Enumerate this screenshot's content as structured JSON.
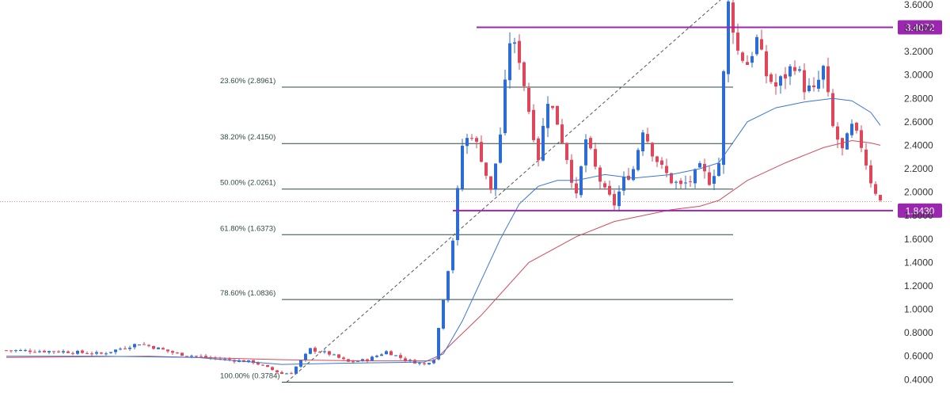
{
  "chart_data": {
    "type": "candlestick",
    "ylim": [
      0.26,
      3.64
    ],
    "x_count": 185,
    "y_ticks": [
      0.4,
      0.6,
      0.8,
      1.0,
      1.2,
      1.4,
      1.6,
      1.8,
      2.0,
      2.2,
      2.4,
      2.6,
      2.8,
      3.0,
      3.2,
      3.4,
      3.6
    ],
    "y_tick_labels": [
      "0.4000",
      "0.6000",
      "0.8000",
      "1.0000",
      "1.2000",
      "1.4000",
      "1.6000",
      "1.8000",
      "2.0000",
      "2.2000",
      "2.4000",
      "2.6000",
      "2.8000",
      "3.0000",
      "3.2000",
      "3.4000",
      "3.6000"
    ],
    "current_price": 1.92,
    "fib_levels": [
      {
        "label": "23.60% (2.8961)",
        "value": 2.8961
      },
      {
        "label": "38.20% (2.4150)",
        "value": 2.415
      },
      {
        "label": "50.00% (2.0261)",
        "value": 2.0261
      },
      {
        "label": "61.80% (1.6373)",
        "value": 1.6373
      },
      {
        "label": "78.60% (1.0836)",
        "value": 1.0836
      },
      {
        "label": "100.00% (0.3784)",
        "value": 0.3784
      }
    ],
    "fib_x_range": [
      58,
      153
    ],
    "trend_line": {
      "x": [
        59,
        152
      ],
      "y": [
        0.3784,
        3.7
      ]
    },
    "horizontal_lines": [
      {
        "value": 3.4072,
        "label": "3.4072",
        "x_start": 99
      },
      {
        "value": 1.843,
        "label": "1.8430",
        "x_start": 94
      }
    ],
    "anchors": [
      [
        0,
        0.65
      ],
      [
        12,
        0.64
      ],
      [
        20,
        0.62
      ],
      [
        28,
        0.71
      ],
      [
        36,
        0.62
      ],
      [
        44,
        0.58
      ],
      [
        52,
        0.55
      ],
      [
        58,
        0.45
      ],
      [
        60,
        0.46
      ],
      [
        64,
        0.66
      ],
      [
        68,
        0.62
      ],
      [
        72,
        0.55
      ],
      [
        76,
        0.57
      ],
      [
        80,
        0.64
      ],
      [
        84,
        0.57
      ],
      [
        88,
        0.53
      ],
      [
        90,
        0.58
      ],
      [
        92,
        1.1
      ],
      [
        94,
        1.6
      ],
      [
        96,
        2.4
      ],
      [
        98,
        2.5
      ],
      [
        100,
        2.3
      ],
      [
        102,
        2.0
      ],
      [
        104,
        2.5
      ],
      [
        106,
        3.3
      ],
      [
        108,
        3.15
      ],
      [
        110,
        2.7
      ],
      [
        112,
        2.3
      ],
      [
        114,
        2.8
      ],
      [
        116,
        2.6
      ],
      [
        118,
        2.3
      ],
      [
        120,
        1.95
      ],
      [
        122,
        2.45
      ],
      [
        124,
        2.2
      ],
      [
        126,
        2.0
      ],
      [
        128,
        1.9
      ],
      [
        130,
        2.1
      ],
      [
        132,
        2.2
      ],
      [
        134,
        2.55
      ],
      [
        136,
        2.35
      ],
      [
        138,
        2.2
      ],
      [
        140,
        2.1
      ],
      [
        142,
        2.05
      ],
      [
        144,
        2.1
      ],
      [
        146,
        2.2
      ],
      [
        148,
        2.1
      ],
      [
        150,
        2.25
      ],
      [
        151,
        3.0
      ],
      [
        152,
        3.6
      ],
      [
        153,
        3.42
      ],
      [
        154,
        3.2
      ],
      [
        156,
        3.1
      ],
      [
        158,
        3.3
      ],
      [
        160,
        3.0
      ],
      [
        162,
        2.9
      ],
      [
        164,
        3.0
      ],
      [
        166,
        3.1
      ],
      [
        168,
        2.9
      ],
      [
        170,
        2.85
      ],
      [
        172,
        3.05
      ],
      [
        174,
        2.55
      ],
      [
        176,
        2.35
      ],
      [
        178,
        2.55
      ],
      [
        180,
        2.4
      ],
      [
        182,
        2.1
      ],
      [
        184,
        1.92
      ]
    ],
    "ma_fast": [
      [
        0,
        0.6
      ],
      [
        20,
        0.6
      ],
      [
        40,
        0.59
      ],
      [
        58,
        0.53
      ],
      [
        70,
        0.54
      ],
      [
        88,
        0.55
      ],
      [
        92,
        0.62
      ],
      [
        96,
        0.9
      ],
      [
        100,
        1.25
      ],
      [
        104,
        1.6
      ],
      [
        108,
        1.9
      ],
      [
        112,
        2.05
      ],
      [
        116,
        2.1
      ],
      [
        120,
        2.1
      ],
      [
        126,
        2.15
      ],
      [
        132,
        2.12
      ],
      [
        140,
        2.15
      ],
      [
        146,
        2.2
      ],
      [
        150,
        2.25
      ],
      [
        156,
        2.6
      ],
      [
        162,
        2.72
      ],
      [
        168,
        2.77
      ],
      [
        174,
        2.8
      ],
      [
        178,
        2.78
      ],
      [
        182,
        2.68
      ],
      [
        184,
        2.57
      ]
    ],
    "ma_slow": [
      [
        0,
        0.59
      ],
      [
        30,
        0.6
      ],
      [
        58,
        0.57
      ],
      [
        75,
        0.56
      ],
      [
        90,
        0.56
      ],
      [
        100,
        0.95
      ],
      [
        110,
        1.4
      ],
      [
        120,
        1.62
      ],
      [
        128,
        1.75
      ],
      [
        140,
        1.85
      ],
      [
        146,
        1.88
      ],
      [
        150,
        1.93
      ],
      [
        156,
        2.1
      ],
      [
        164,
        2.25
      ],
      [
        172,
        2.38
      ],
      [
        178,
        2.44
      ],
      [
        182,
        2.42
      ],
      [
        184,
        2.4
      ]
    ],
    "series_colors": {
      "up": "#2c6cd6",
      "down": "#e0455a",
      "ma_fast": "#3a75d8",
      "ma_slow": "#d24b59",
      "fib": "#2e4a44",
      "hline": "#9b27b0",
      "current": "#e58a8a"
    }
  }
}
